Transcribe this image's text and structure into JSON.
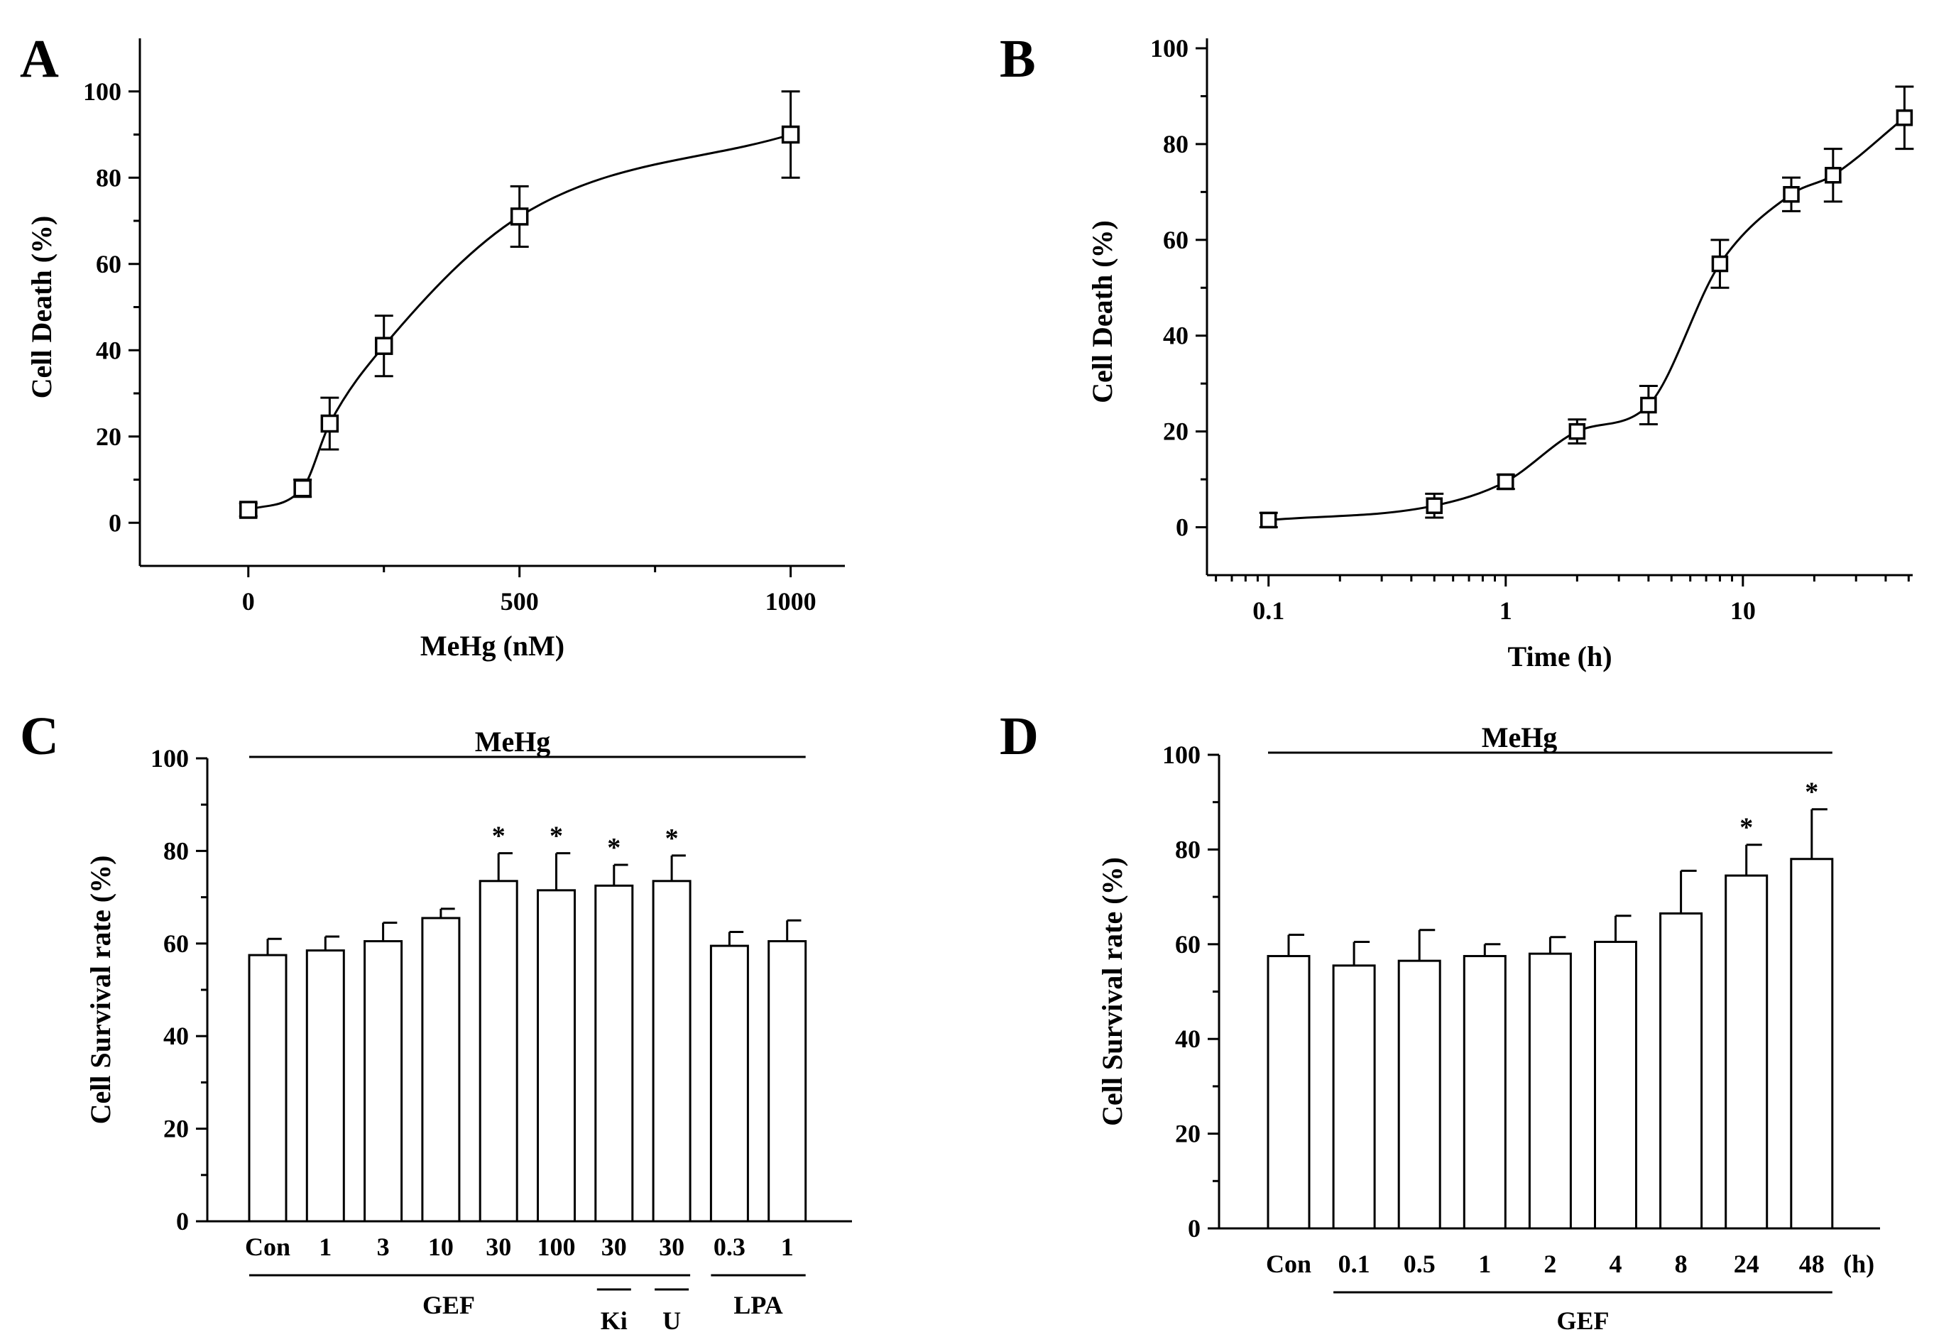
{
  "chart_data": [
    {
      "panel": "A",
      "type": "scatter",
      "xlabel": "MeHg (nM)",
      "ylabel": "Cell Death (%)",
      "xlim": [
        -200,
        1100
      ],
      "ylim": [
        -10,
        110
      ],
      "xticks": [
        0,
        500,
        1000
      ],
      "yticks": [
        0,
        20,
        40,
        60,
        80,
        100
      ],
      "x": [
        0,
        100,
        150,
        250,
        500,
        1000
      ],
      "y": [
        3,
        8,
        23,
        41,
        71,
        90
      ],
      "err": [
        1.5,
        2,
        6,
        7,
        7,
        10
      ],
      "curve_fit": "sigmoid"
    },
    {
      "panel": "B",
      "type": "scatter",
      "xscale": "log",
      "xlabel": "Time (h)",
      "ylabel": "Cell Death (%)",
      "xlim": [
        0.055,
        52
      ],
      "ylim": [
        -10,
        100
      ],
      "xticks": [
        0.1,
        1,
        10
      ],
      "xtick_labels": [
        "0.1",
        "1",
        "10"
      ],
      "yticks": [
        0,
        20,
        40,
        60,
        80,
        100
      ],
      "x": [
        0.1,
        0.5,
        1,
        2,
        4,
        8,
        16,
        24,
        48
      ],
      "y": [
        1.5,
        4.5,
        9.5,
        20,
        25.5,
        55,
        69.5,
        73.5,
        85.5
      ],
      "err": [
        1.5,
        2.5,
        1.5,
        2.5,
        4,
        5,
        3.5,
        5.5,
        6.5
      ],
      "curve_fit": "sigmoid"
    },
    {
      "panel": "C",
      "type": "bar",
      "ylabel": "Cell Survival rate (%)",
      "top_label": "MeHg",
      "ylim": [
        0,
        100
      ],
      "yticks": [
        0,
        20,
        40,
        60,
        80,
        100
      ],
      "categories": [
        "Con",
        "1",
        "3",
        "10",
        "30",
        "100",
        "30",
        "30",
        "0.3",
        "1"
      ],
      "values": [
        57.5,
        58.5,
        60.5,
        65.5,
        73.5,
        71.5,
        72.5,
        73.5,
        59.5,
        60.5
      ],
      "err": [
        3.5,
        3,
        4,
        2,
        6,
        8,
        4.5,
        5.5,
        3,
        4.5
      ],
      "significant": [
        false,
        false,
        false,
        false,
        true,
        true,
        true,
        true,
        false,
        false
      ],
      "star": "*",
      "groups": [
        {
          "label": "GEF",
          "from": 0,
          "to": 7
        },
        {
          "label": "Ki",
          "from": 6,
          "to": 6
        },
        {
          "label": "U",
          "from": 7,
          "to": 7
        },
        {
          "label": "LPA",
          "from": 8,
          "to": 9
        }
      ]
    },
    {
      "panel": "D",
      "type": "bar",
      "ylabel": "Cell Survival rate (%)",
      "top_label": "MeHg",
      "unit_label": "(h)",
      "ylim": [
        0,
        100
      ],
      "yticks": [
        0,
        20,
        40,
        60,
        80,
        100
      ],
      "categories": [
        "Con",
        "0.1",
        "0.5",
        "1",
        "2",
        "4",
        "8",
        "24",
        "48"
      ],
      "values": [
        57.5,
        55.5,
        56.5,
        57.5,
        58,
        60.5,
        66.5,
        74.5,
        78
      ],
      "err": [
        4.5,
        5,
        6.5,
        2.5,
        3.5,
        5.5,
        9,
        6.5,
        10.5
      ],
      "significant": [
        false,
        false,
        false,
        false,
        false,
        false,
        false,
        true,
        true
      ],
      "star": "*",
      "groups": [
        {
          "label": "GEF",
          "from": 1,
          "to": 8
        }
      ]
    }
  ]
}
